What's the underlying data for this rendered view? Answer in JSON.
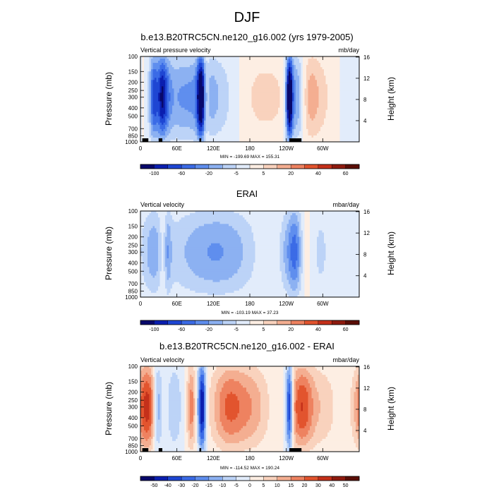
{
  "page": {
    "title": "DJF"
  },
  "colors": {
    "ramp": [
      "#08086b",
      "#0b1fb0",
      "#1e46d3",
      "#3b6be6",
      "#5f8eee",
      "#8cb1f2",
      "#bcd3f7",
      "#e2ecfb",
      "#fdeee3",
      "#f9d2bd",
      "#f4ae91",
      "#ee8260",
      "#e2542e",
      "#c4301a",
      "#8f1b0f",
      "#5b0e07"
    ]
  },
  "chart_data": [
    {
      "type": "heatmap",
      "title": "b.e13.B20TRC5CN.ne120_g16.002 (yrs 1979-2005)",
      "left_label": "Vertical pressure velocity",
      "right_label": "mb/day",
      "xlabel": "",
      "ylabel": "Pressure (mb)",
      "y2label": "Height (km)",
      "xticks": [
        "0",
        "60E",
        "120E",
        "180",
        "120W",
        "60W"
      ],
      "yticks": [
        "100",
        "150",
        "200",
        "250",
        "300",
        "400",
        "500",
        "700",
        "850",
        "1000"
      ],
      "y2ticks": [
        "16",
        "12",
        "8",
        "4"
      ],
      "stats": "MIN = -199.69  MAX = 155.31",
      "colorbar_labels": [
        "-100",
        "-60",
        "-20",
        "-5",
        "5",
        "20",
        "40",
        "60"
      ],
      "field": {
        "features": [
          {
            "lon": 95,
            "width": 60,
            "value": -40
          },
          {
            "lon": 35,
            "width": 8,
            "value": -60
          },
          {
            "lon": 23,
            "width": 6,
            "value": -50
          },
          {
            "lon": 28,
            "width": 4,
            "value": 30
          },
          {
            "lon": 10,
            "width": 12,
            "value": 15
          },
          {
            "lon": 100,
            "width": 5,
            "value": -80
          },
          {
            "lon": 107,
            "width": 4,
            "value": 30
          },
          {
            "lon": 185,
            "width": 45,
            "value": 25
          },
          {
            "lon": 245,
            "width": 4,
            "value": -100
          },
          {
            "lon": 258,
            "width": 10,
            "value": -50
          },
          {
            "lon": 275,
            "width": 14,
            "value": 25
          },
          {
            "lon": 300,
            "width": 20,
            "value": 12
          }
        ]
      }
    },
    {
      "type": "heatmap",
      "title": "ERAI",
      "left_label": "Vertical velocity",
      "right_label": "mbar/day",
      "xlabel": "",
      "ylabel": "Pressure (mb)",
      "y2label": "Height (km)",
      "xticks": [
        "0",
        "60E",
        "120E",
        "180",
        "120W",
        "60W"
      ],
      "yticks": [
        "100",
        "150",
        "200",
        "250",
        "300",
        "400",
        "500",
        "700",
        "850",
        "1000"
      ],
      "y2ticks": [
        "16",
        "12",
        "8",
        "4"
      ],
      "stats": "MIN = -103.19  MAX = 37.23",
      "colorbar_labels": [
        "-100",
        "-60",
        "-20",
        "-5",
        "5",
        "20",
        "40",
        "60"
      ],
      "field": {
        "features": [
          {
            "lon": 125,
            "width": 55,
            "value": -35
          },
          {
            "lon": 22,
            "width": 14,
            "value": -25
          },
          {
            "lon": 38,
            "width": 6,
            "value": 18
          },
          {
            "lon": 45,
            "width": 4,
            "value": -25
          },
          {
            "lon": 215,
            "width": 30,
            "value": 10
          },
          {
            "lon": 240,
            "width": 10,
            "value": -25
          },
          {
            "lon": 255,
            "width": 8,
            "value": -45
          },
          {
            "lon": 275,
            "width": 10,
            "value": 8
          },
          {
            "lon": 295,
            "width": 12,
            "value": -15
          }
        ]
      }
    },
    {
      "type": "heatmap",
      "title": "b.e13.B20TRC5CN.ne120_g16.002 - ERAI",
      "left_label": "Vertical velocity",
      "right_label": "mbar/day",
      "xlabel": "",
      "ylabel": "Pressure (mb)",
      "y2label": "Height (km)",
      "xticks": [
        "0",
        "60E",
        "120E",
        "180",
        "120W",
        "60W"
      ],
      "yticks": [
        "100",
        "150",
        "200",
        "250",
        "300",
        "400",
        "500",
        "700",
        "850",
        "1000"
      ],
      "y2ticks": [
        "16",
        "12",
        "8",
        "4"
      ],
      "stats": "MIN = -114.52  MAX = 190.24",
      "colorbar_labels": [
        "-50",
        "-40",
        "-30",
        "-20",
        "-15",
        "-10",
        "-5",
        "0",
        "5",
        "10",
        "15",
        "20",
        "30",
        "40",
        "50"
      ],
      "field": {
        "features": [
          {
            "lon": 12,
            "width": 14,
            "value": 35
          },
          {
            "lon": 28,
            "width": 6,
            "value": -30
          },
          {
            "lon": 55,
            "width": 10,
            "value": -12
          },
          {
            "lon": 85,
            "width": 6,
            "value": 25
          },
          {
            "lon": 95,
            "width": 6,
            "value": -15
          },
          {
            "lon": 102,
            "width": 4,
            "value": -40
          },
          {
            "lon": 145,
            "width": 20,
            "value": 25
          },
          {
            "lon": 185,
            "width": 20,
            "value": 15
          },
          {
            "lon": 245,
            "width": 4,
            "value": -45
          },
          {
            "lon": 265,
            "width": 14,
            "value": 30
          },
          {
            "lon": 300,
            "width": 18,
            "value": 10
          }
        ]
      }
    }
  ]
}
